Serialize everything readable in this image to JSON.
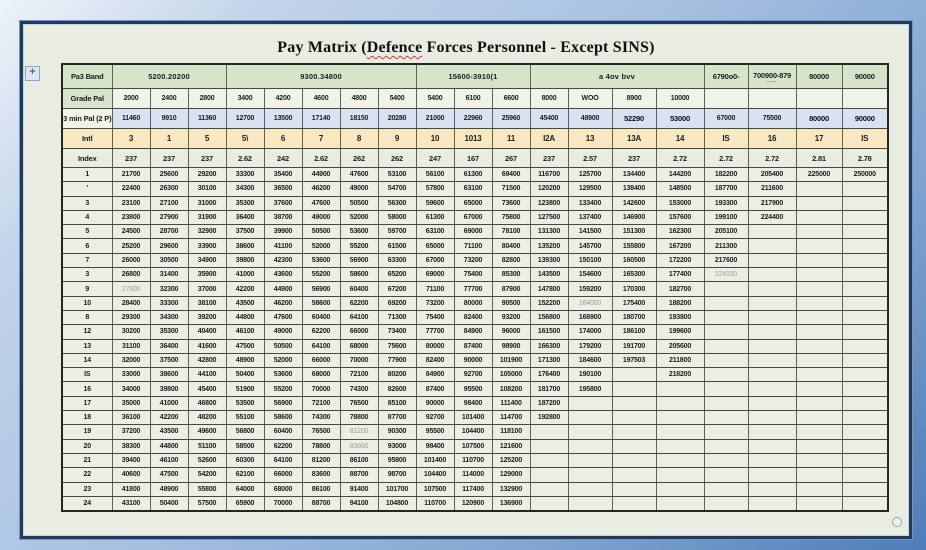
{
  "colors": {
    "frame_blue": "#4f7db8",
    "navy_border": "#1e3c63",
    "page_bg": "#e8ece2",
    "band_green": "#d8e4ca",
    "min_pay_blue": "#d9e2f1",
    "level_cream": "#f8e8c2",
    "squiggle_red": "#e03232",
    "muted_text": "#9aa096"
  },
  "title": {
    "prefix": "Pay Matrix (",
    "misspelled": "Defence",
    "suffix": " Forces Personnel - Except SINS)"
  },
  "handles": {
    "move": "+",
    "resize": ""
  },
  "header": {
    "band_label": "Pa3 Band",
    "bands": [
      {
        "label": "5200.20200",
        "span": 3
      },
      {
        "label": "9300.34800",
        "span": 5
      },
      {
        "label": "15600-3910(1",
        "span": 3
      },
      {
        "label": "a 4ov bvv",
        "span": 4
      },
      {
        "label": "6790o0-",
        "span": 1
      },
      {
        "label": "700900-879",
        "sub": "....",
        "span": 1
      },
      {
        "label": "80000",
        "span": 1
      },
      {
        "label": "90000",
        "span": 1
      }
    ],
    "grade_label": "Grade Pal",
    "grades": [
      "2000",
      "2400",
      "2800",
      "3400",
      "4200",
      "4600",
      "4800",
      "5400",
      "5400",
      "6100",
      "6600",
      "8000",
      "WOO",
      "8900",
      "10000",
      "",
      "",
      "",
      ""
    ],
    "min_pay_label": "3 min Pal (2 P)",
    "min_pay": [
      "11460",
      "9910",
      "11360",
      "12700",
      "13500",
      "17140",
      "18150",
      "20280",
      "21000",
      "22960",
      "25960",
      "45400",
      "48900",
      "52290",
      "53000",
      "67000",
      "75500",
      "80000",
      "90000"
    ],
    "min_pay_bold": [
      13,
      14,
      17,
      18
    ],
    "level_label": "Intl",
    "levels": [
      "3",
      "1",
      "5",
      "5\\",
      "6",
      "7",
      "8",
      "9",
      "10",
      "1013",
      "11",
      "I2A",
      "13",
      "13A",
      "14",
      "IS",
      "16",
      "17",
      "IS"
    ],
    "index_label": "Index",
    "indexes": [
      "237",
      "237",
      "237",
      "2.62",
      "242",
      "2.62",
      "262",
      "262",
      "247",
      "167",
      "267",
      "237",
      "2.57",
      "237",
      "2.72",
      "2.72",
      "2.72",
      "2.81",
      "2.78"
    ]
  },
  "rows": [
    {
      "label": "1",
      "v": [
        "21700",
        "25600",
        "29200",
        "33300",
        "35400",
        "44900",
        "47600",
        "53100",
        "56100",
        "61300",
        "69400",
        "116700",
        "125700",
        "134400",
        "144200",
        "182200",
        "205400",
        "225000",
        "250000"
      ]
    },
    {
      "label": "'",
      "v": [
        "22400",
        "26300",
        "30100",
        "34300",
        "36500",
        "46200",
        "49000",
        "54700",
        "57800",
        "63100",
        "71500",
        "120200",
        "129500",
        "138400",
        "148500",
        "187700",
        "211600",
        "",
        ""
      ]
    },
    {
      "label": "3",
      "v": [
        "23100",
        "27100",
        "31000",
        "35300",
        "37600",
        "47600",
        "50500",
        "56300",
        "59600",
        "65000",
        "73600",
        "123800",
        "133400",
        "142600",
        "153000",
        "193300",
        "217900",
        "",
        ""
      ]
    },
    {
      "label": "4",
      "v": [
        "23800",
        "27900",
        "31900",
        "36400",
        "38700",
        "49000",
        "52000",
        "58000",
        "61300",
        "67000",
        "75800",
        "127500",
        "137400",
        "146900",
        "157600",
        "199100",
        "224400",
        "",
        ""
      ]
    },
    {
      "label": "5",
      "v": [
        "24500",
        "28700",
        "32900",
        "37500",
        "39900",
        "50500",
        "53600",
        "59700",
        "63100",
        "69000",
        "78100",
        "131300",
        "141500",
        "151300",
        "162300",
        "205100",
        "",
        "",
        ""
      ]
    },
    {
      "label": "6",
      "v": [
        "25200",
        "29600",
        "33900",
        "38600",
        "41100",
        "52000",
        "55200",
        "61500",
        "65000",
        "71100",
        "80400",
        "135200",
        "145700",
        "155800",
        "167200",
        "211300",
        "",
        "",
        ""
      ]
    },
    {
      "label": "7",
      "v": [
        "26000",
        "30500",
        "34900",
        "39800",
        "42300",
        "53600",
        "56900",
        "63300",
        "67000",
        "73200",
        "82800",
        "139300",
        "150100",
        "160500",
        "172200",
        "217600",
        "",
        "",
        ""
      ]
    },
    {
      "label": "3",
      "v": [
        "26800",
        "31400",
        "35900",
        "41000",
        "43600",
        "55200",
        "58600",
        "65200",
        "69000",
        "75400",
        "85300",
        "143500",
        "154600",
        "165300",
        "177400",
        "224100",
        "",
        "",
        ""
      ]
    },
    {
      "label": "9",
      "v": [
        "27600",
        "32300",
        "37000",
        "42200",
        "44900",
        "56900",
        "60400",
        "67200",
        "71100",
        "77700",
        "87900",
        "147800",
        "159200",
        "170300",
        "182700",
        "",
        "",
        "",
        ""
      ]
    },
    {
      "label": "10",
      "v": [
        "28400",
        "33300",
        "38100",
        "43500",
        "46200",
        "58600",
        "62200",
        "69200",
        "73200",
        "80000",
        "90500",
        "152200",
        "164000",
        "175400",
        "188200",
        "",
        "",
        "",
        ""
      ]
    },
    {
      "label": "8",
      "v": [
        "29300",
        "34300",
        "39200",
        "44800",
        "47600",
        "60400",
        "64100",
        "71300",
        "75400",
        "82400",
        "93200",
        "156800",
        "168900",
        "180700",
        "193800",
        "",
        "",
        "",
        ""
      ]
    },
    {
      "label": "12",
      "v": [
        "30200",
        "35300",
        "40400",
        "46100",
        "49000",
        "62200",
        "66000",
        "73400",
        "77700",
        "84900",
        "96000",
        "161500",
        "174000",
        "186100",
        "199600",
        "",
        "",
        "",
        ""
      ]
    },
    {
      "label": "13",
      "v": [
        "31100",
        "36400",
        "41600",
        "47500",
        "50500",
        "64100",
        "68000",
        "75600",
        "80000",
        "87400",
        "98900",
        "166300",
        "179200",
        "191700",
        "205600",
        "",
        "",
        "",
        ""
      ]
    },
    {
      "label": "14",
      "v": [
        "32000",
        "37500",
        "42800",
        "48900",
        "52000",
        "66000",
        "70000",
        "77900",
        "82400",
        "90000",
        "101900",
        "171300",
        "184600",
        "197503",
        "211800",
        "",
        "",
        "",
        ""
      ]
    },
    {
      "label": "IS",
      "v": [
        "33000",
        "38600",
        "44100",
        "50400",
        "53600",
        "68000",
        "72100",
        "80200",
        "84900",
        "92700",
        "105000",
        "176400",
        "190100",
        "",
        "218200",
        "",
        "",
        "",
        ""
      ]
    },
    {
      "label": "16",
      "v": [
        "34000",
        "39800",
        "45400",
        "51900",
        "55200",
        "70000",
        "74300",
        "82600",
        "87400",
        "95500",
        "108200",
        "181700",
        "195800",
        "",
        "",
        "",
        "",
        "",
        ""
      ]
    },
    {
      "label": "17",
      "v": [
        "35000",
        "41000",
        "46800",
        "53500",
        "56900",
        "72100",
        "76500",
        "85100",
        "90000",
        "98400",
        "111400",
        "187200",
        "",
        "",
        "",
        "",
        "",
        "",
        ""
      ]
    },
    {
      "label": "18",
      "v": [
        "36100",
        "42200",
        "48200",
        "55100",
        "58600",
        "74300",
        "78800",
        "87700",
        "92700",
        "101400",
        "114700",
        "192800",
        "",
        "",
        "",
        "",
        "",
        "",
        ""
      ]
    },
    {
      "label": "19",
      "v": [
        "37200",
        "43500",
        "49600",
        "56800",
        "60400",
        "76500",
        "81200",
        "90300",
        "95500",
        "104400",
        "118100",
        "",
        "",
        "",
        "",
        "",
        "",
        "",
        ""
      ]
    },
    {
      "label": "20",
      "v": [
        "38300",
        "44800",
        "51100",
        "58500",
        "62200",
        "78800",
        "83600",
        "93000",
        "98400",
        "107500",
        "121600",
        "",
        "",
        "",
        "",
        "",
        "",
        "",
        ""
      ]
    },
    {
      "label": "21",
      "v": [
        "39400",
        "46100",
        "52600",
        "60300",
        "64100",
        "81200",
        "86100",
        "95800",
        "101400",
        "110700",
        "125200",
        "",
        "",
        "",
        "",
        "",
        "",
        "",
        ""
      ]
    },
    {
      "label": "22",
      "v": [
        "40600",
        "47500",
        "54200",
        "62100",
        "66000",
        "83600",
        "88700",
        "98700",
        "104400",
        "114000",
        "129000",
        "",
        "",
        "",
        "",
        "",
        "",
        "",
        ""
      ]
    },
    {
      "label": "23",
      "v": [
        "41800",
        "48900",
        "55800",
        "64000",
        "68000",
        "86100",
        "91400",
        "101700",
        "107500",
        "117400",
        "132900",
        "",
        "",
        "",
        "",
        "",
        "",
        "",
        ""
      ]
    },
    {
      "label": "24",
      "v": [
        "43100",
        "50400",
        "57500",
        "65900",
        "70000",
        "88700",
        "94100",
        "104800",
        "110700",
        "120900",
        "136900",
        "",
        "",
        "",
        "",
        "",
        "",
        "",
        ""
      ]
    }
  ],
  "muted_cells": [
    [
      9,
      1
    ],
    [
      8,
      16
    ],
    [
      10,
      13
    ],
    [
      19,
      7
    ],
    [
      20,
      7
    ]
  ]
}
